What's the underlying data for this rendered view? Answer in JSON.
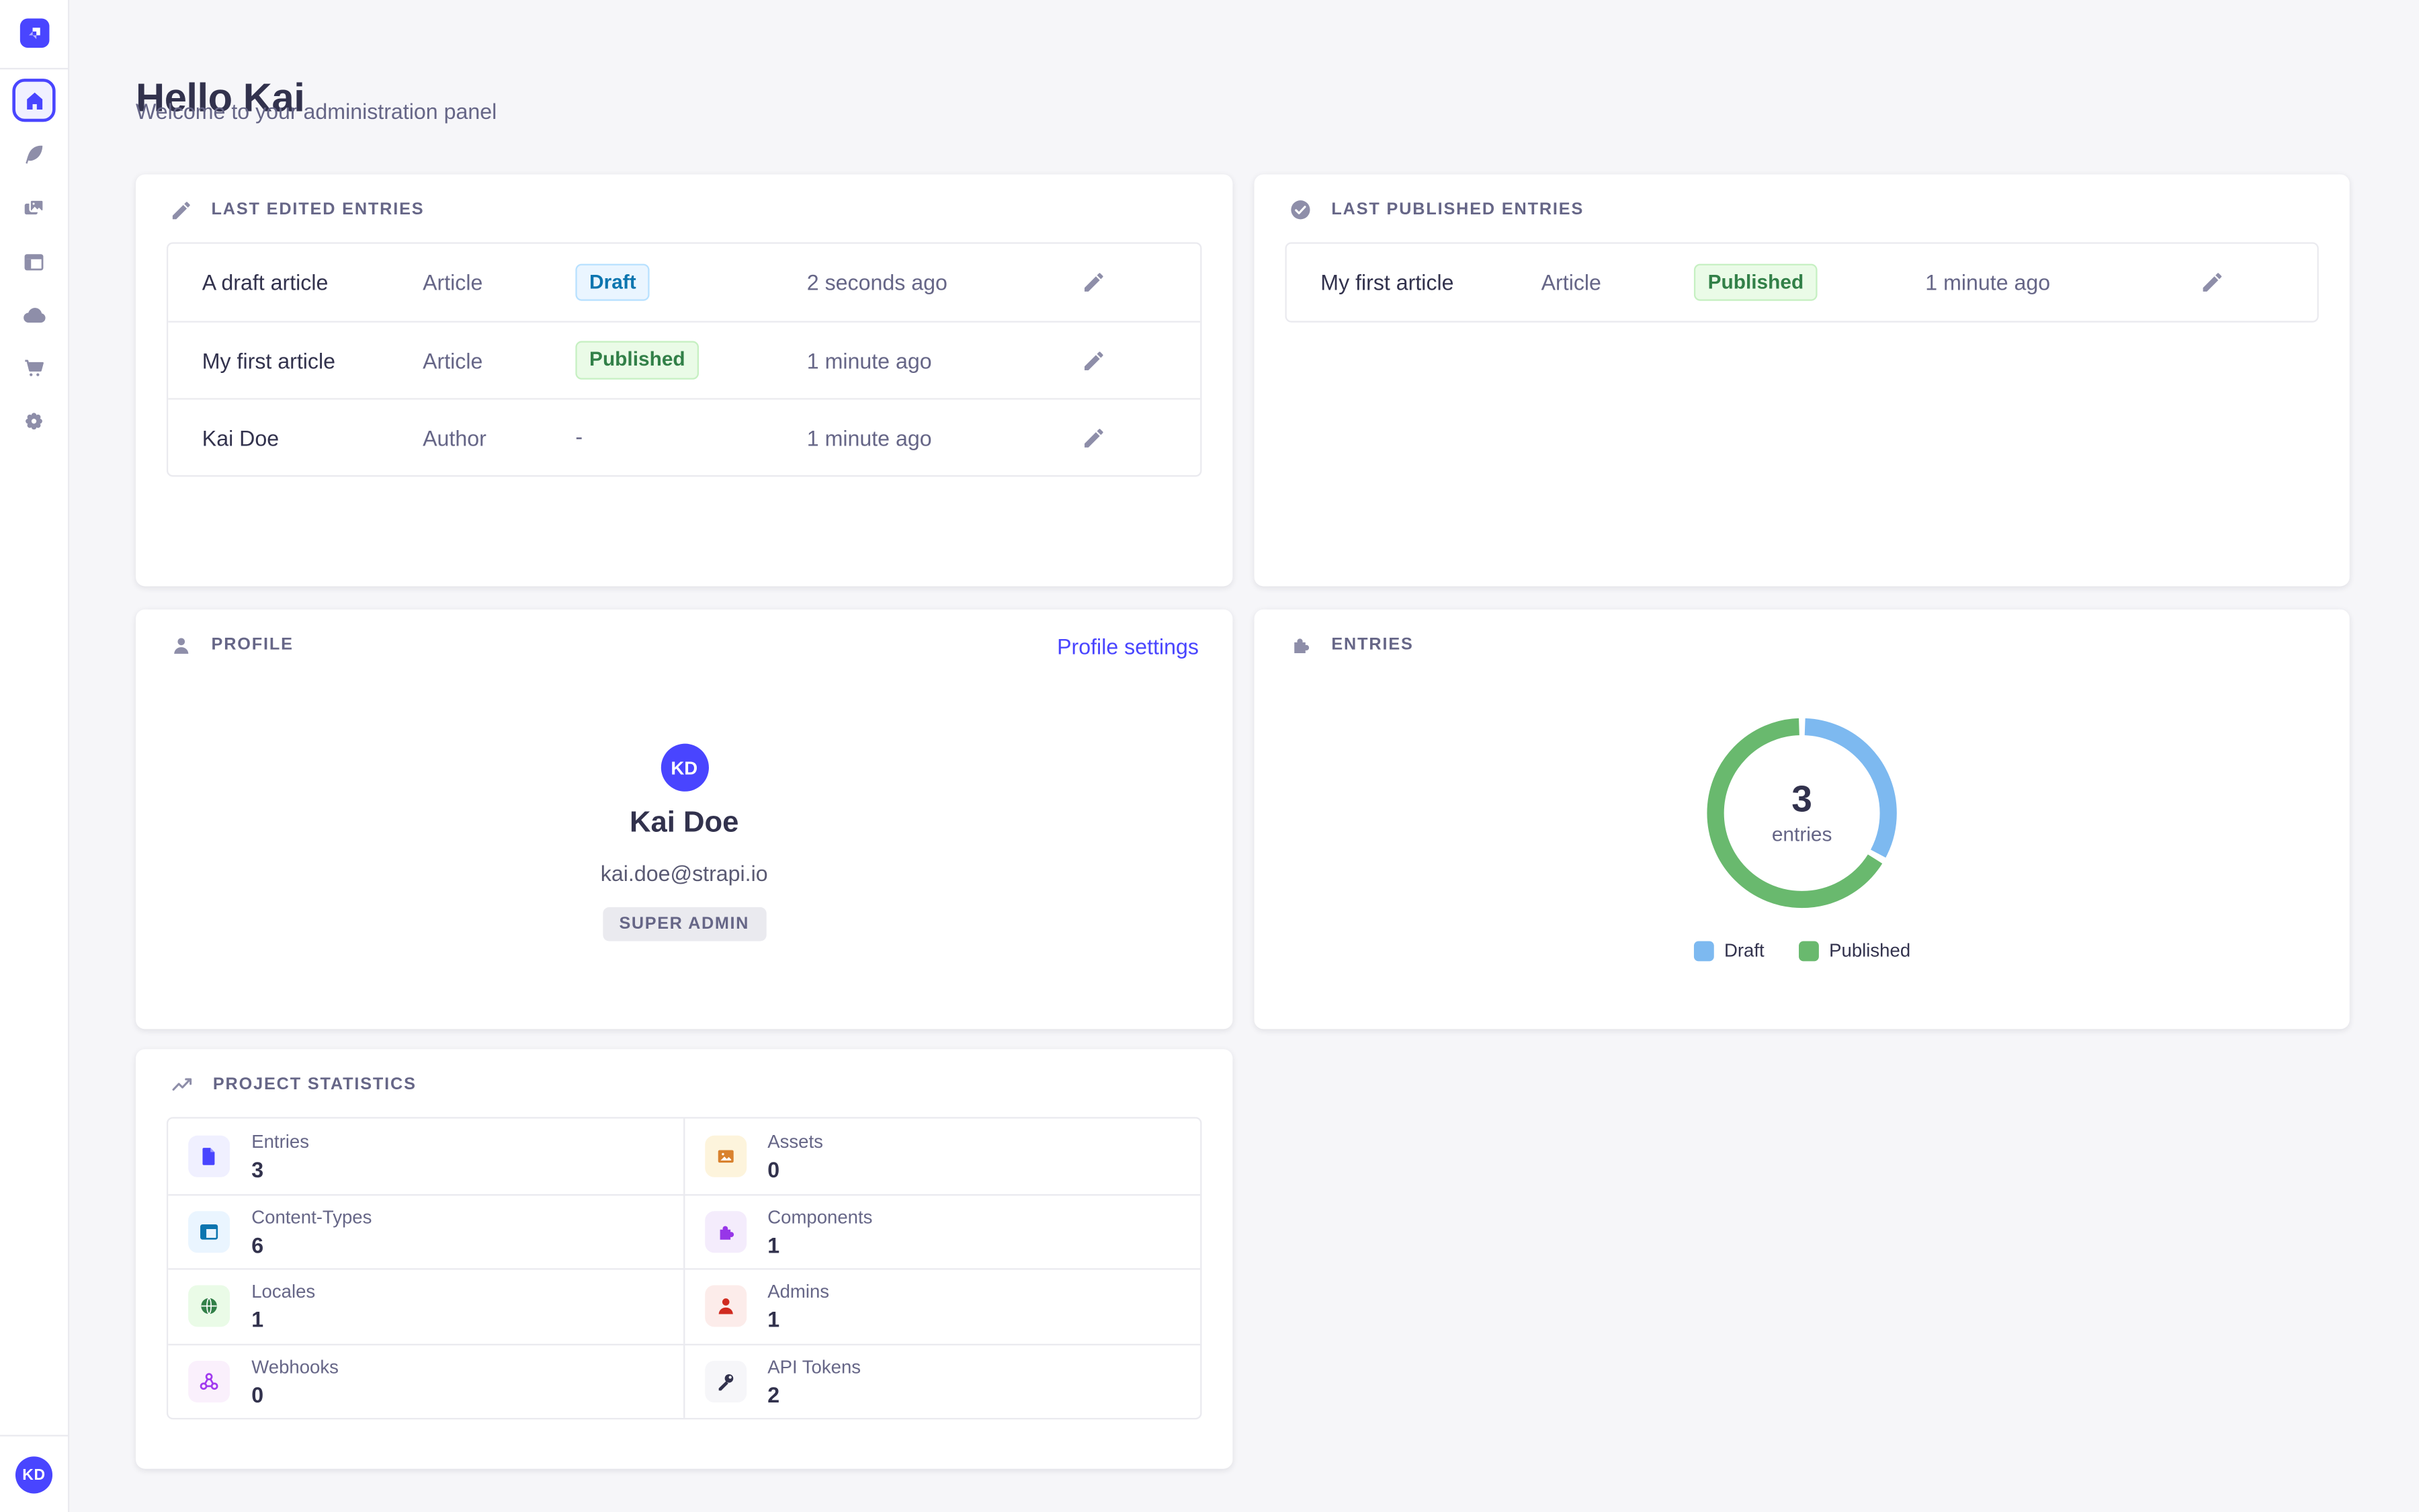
{
  "page": {
    "title": "Hello Kai",
    "subtitle": "Welcome to your administration panel"
  },
  "sidebar": {
    "icons": [
      "strapi-logo",
      "home-icon",
      "feather-icon",
      "images-icon",
      "layout-icon",
      "cloud-icon",
      "cart-icon",
      "gear-icon"
    ],
    "active_item": "home",
    "user_initials": "KD"
  },
  "colors": {
    "accent": "#4945ff",
    "draft_bg": "#eaf5ff",
    "draft_border": "#b8e1ff",
    "draft_text": "#0c75af",
    "published_bg": "#eafbe7",
    "published_border": "#c6f0c2",
    "published_text": "#328048",
    "background": "#f6f6f9"
  },
  "cards": {
    "last_edited": {
      "title": "LAST EDITED ENTRIES",
      "rows": [
        {
          "name": "A draft article",
          "type": "Article",
          "status": "Draft",
          "time": "2 seconds ago"
        },
        {
          "name": "My first article",
          "type": "Article",
          "status": "Published",
          "time": "1 minute ago"
        },
        {
          "name": "Kai Doe",
          "type": "Author",
          "status": "-",
          "time": "1 minute ago"
        }
      ]
    },
    "last_published": {
      "title": "LAST PUBLISHED ENTRIES",
      "rows": [
        {
          "name": "My first article",
          "type": "Article",
          "status": "Published",
          "time": "1 minute ago"
        }
      ]
    },
    "profile": {
      "title": "PROFILE",
      "settings_link": "Profile settings",
      "avatar_initials": "KD",
      "name": "Kai Doe",
      "email": "kai.doe@strapi.io",
      "role_badge": "SUPER ADMIN"
    },
    "entries": {
      "title": "ENTRIES"
    },
    "stats": {
      "title": "PROJECT STATISTICS",
      "items": [
        {
          "label": "Entries",
          "value": "3",
          "icon": "file-icon"
        },
        {
          "label": "Assets",
          "value": "0",
          "icon": "picture-icon"
        },
        {
          "label": "Content-Types",
          "value": "6",
          "icon": "layout-icon"
        },
        {
          "label": "Components",
          "value": "1",
          "icon": "puzzle-icon"
        },
        {
          "label": "Locales",
          "value": "1",
          "icon": "globe-icon"
        },
        {
          "label": "Admins",
          "value": "1",
          "icon": "user-icon"
        },
        {
          "label": "Webhooks",
          "value": "0",
          "icon": "webhook-icon"
        },
        {
          "label": "API Tokens",
          "value": "2",
          "icon": "key-icon"
        }
      ]
    }
  },
  "chart_data": {
    "type": "donut",
    "title": "ENTRIES",
    "center_value": "3",
    "center_label": "entries",
    "series": [
      {
        "name": "Draft",
        "value": 1,
        "color": "#7db9f0"
      },
      {
        "name": "Published",
        "value": 2,
        "color": "#69b96e"
      }
    ],
    "legend_position": "bottom"
  }
}
